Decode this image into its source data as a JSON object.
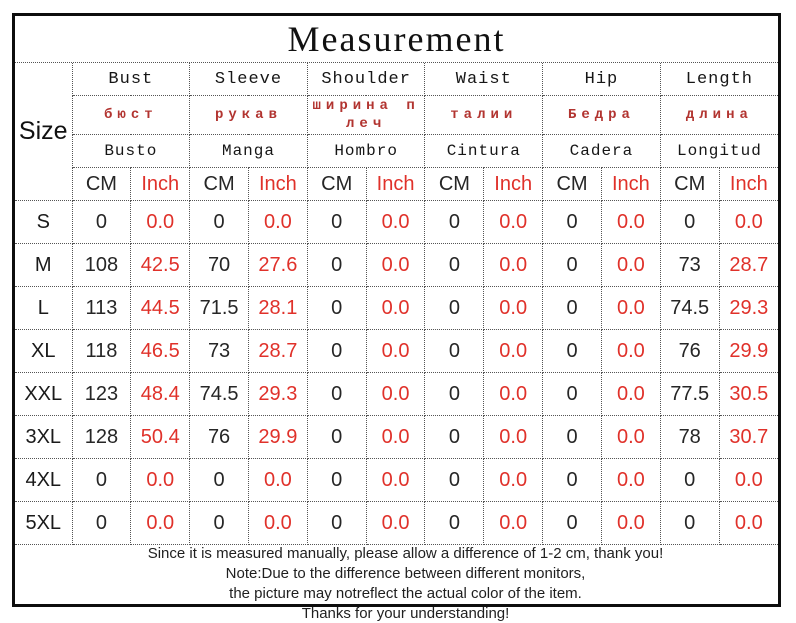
{
  "title": "Measurement",
  "table": {
    "size_header": "Size",
    "groups": [
      {
        "en": "Bust",
        "ru": "бюст",
        "es": "Busto"
      },
      {
        "en": "Sleeve",
        "ru": "рукав",
        "es": "Manga"
      },
      {
        "en": "Shoulder",
        "ru": "ширина плеч",
        "es": "Hombro"
      },
      {
        "en": "Waist",
        "ru": "талии",
        "es": "Cintura"
      },
      {
        "en": "Hip",
        "ru": "Бедра",
        "es": "Cadera"
      },
      {
        "en": "Length",
        "ru": "длина",
        "es": "Longitud"
      }
    ],
    "units": {
      "cm": "CM",
      "inch": "Inch"
    },
    "rows": [
      {
        "size": "S",
        "values": [
          "0",
          "0.0",
          "0",
          "0.0",
          "0",
          "0.0",
          "0",
          "0.0",
          "0",
          "0.0",
          "0",
          "0.0"
        ]
      },
      {
        "size": "M",
        "values": [
          "108",
          "42.5",
          "70",
          "27.6",
          "0",
          "0.0",
          "0",
          "0.0",
          "0",
          "0.0",
          "73",
          "28.7"
        ]
      },
      {
        "size": "L",
        "values": [
          "113",
          "44.5",
          "71.5",
          "28.1",
          "0",
          "0.0",
          "0",
          "0.0",
          "0",
          "0.0",
          "74.5",
          "29.3"
        ]
      },
      {
        "size": "XL",
        "values": [
          "118",
          "46.5",
          "73",
          "28.7",
          "0",
          "0.0",
          "0",
          "0.0",
          "0",
          "0.0",
          "76",
          "29.9"
        ]
      },
      {
        "size": "XXL",
        "values": [
          "123",
          "48.4",
          "74.5",
          "29.3",
          "0",
          "0.0",
          "0",
          "0.0",
          "0",
          "0.0",
          "77.5",
          "30.5"
        ]
      },
      {
        "size": "3XL",
        "values": [
          "128",
          "50.4",
          "76",
          "29.9",
          "0",
          "0.0",
          "0",
          "0.0",
          "0",
          "0.0",
          "78",
          "30.7"
        ]
      },
      {
        "size": "4XL",
        "values": [
          "0",
          "0.0",
          "0",
          "0.0",
          "0",
          "0.0",
          "0",
          "0.0",
          "0",
          "0.0",
          "0",
          "0.0"
        ]
      },
      {
        "size": "5XL",
        "values": [
          "0",
          "0.0",
          "0",
          "0.0",
          "0",
          "0.0",
          "0",
          "0.0",
          "0",
          "0.0",
          "0",
          "0.0"
        ]
      }
    ]
  },
  "notes": [
    "Since it is measured manually, please allow a difference of 1-2 cm, thank you!",
    "Note:Due to the difference between different monitors,",
    "the picture may notreflect the actual color of the item.",
    "Thanks for your understanding!"
  ],
  "colors": {
    "inch_red": "#e0312a",
    "cyrillic_red": "#b23430",
    "text_black": "#1c1c1c",
    "border_black": "#0d0d0d"
  }
}
